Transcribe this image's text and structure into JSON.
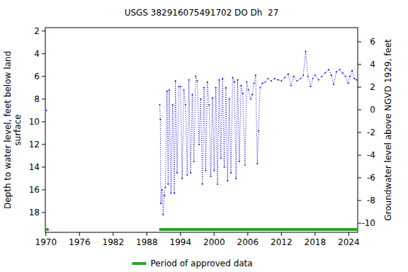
{
  "chart_data": {
    "type": "line",
    "title": "USGS 382916075491702 DO Dh  27",
    "ylabel": [
      "Depth to water level, feet below land",
      "surface"
    ],
    "y2label": "Groundwater level above NGVD 1929, feet",
    "x": [
      1970.1,
      1980.0,
      1990.3,
      1990.4,
      1990.5,
      1990.7,
      1990.9,
      1991.1,
      1991.3,
      1991.6,
      1991.8,
      1992.0,
      1992.3,
      1992.6,
      1992.9,
      1993.1,
      1993.4,
      1993.7,
      1994.0,
      1994.3,
      1994.6,
      1994.9,
      1995.2,
      1995.5,
      1995.8,
      1996.1,
      1996.4,
      1996.7,
      1997.0,
      1997.3,
      1997.6,
      1997.9,
      1998.2,
      1998.5,
      1998.8,
      1999.1,
      1999.4,
      1999.7,
      2000.0,
      2000.3,
      2000.6,
      2000.9,
      2001.2,
      2001.5,
      2001.8,
      2002.1,
      2002.4,
      2002.7,
      2003.0,
      2003.3,
      2003.6,
      2003.9,
      2004.2,
      2004.5,
      2004.8,
      2005.1,
      2005.5,
      2005.8,
      2006.1,
      2006.5,
      2006.8,
      2007.1,
      2007.4,
      2007.7,
      2007.9,
      2008.2,
      2008.6,
      2009.1,
      2009.6,
      2010.2,
      2010.8,
      2011.4,
      2012.0,
      2012.6,
      2013.2,
      2013.7,
      2014.2,
      2014.8,
      2015.4,
      2015.9,
      2016.3,
      2016.7,
      2017.2,
      2017.6,
      2018.0,
      2018.6,
      2019.2,
      2019.8,
      2020.4,
      2020.9,
      2021.3,
      2021.8,
      2022.4,
      2022.9,
      2023.4,
      2023.9,
      2024.2,
      2024.6,
      2025.0,
      2025.4
    ],
    "series": [
      {
        "color": "#0000ff",
        "line_style": "dotted",
        "marker": "point",
        "values": [
          9.0,
          null,
          8.5,
          9.8,
          17.2,
          16.0,
          18.2,
          16.5,
          15.8,
          7.3,
          15.5,
          7.2,
          16.3,
          8.5,
          16.3,
          6.4,
          14.5,
          6.9,
          6.9,
          15.0,
          7.2,
          8.5,
          14.7,
          6.3,
          14.5,
          7.6,
          13.5,
          6.0,
          6.4,
          12.0,
          8.0,
          15.5,
          7.0,
          14.3,
          6.5,
          8.5,
          14.8,
          7.9,
          14.3,
          7.0,
          15.5,
          6.3,
          13.2,
          6.2,
          14.0,
          7.0,
          15.2,
          8.0,
          14.5,
          6.1,
          6.5,
          15.0,
          6.3,
          13.5,
          6.8,
          7.5,
          13.8,
          6.5,
          7.2,
          8.0,
          7.6,
          6.6,
          5.9,
          13.7,
          10.8,
          7.0,
          6.6,
          6.5,
          6.2,
          6.4,
          6.2,
          6.3,
          6.4,
          6.1,
          5.8,
          6.8,
          6.0,
          6.4,
          6.2,
          5.9,
          3.8,
          6.0,
          6.9,
          6.2,
          5.9,
          6.3,
          6.0,
          5.7,
          5.4,
          5.9,
          6.7,
          5.6,
          5.4,
          5.7,
          6.0,
          6.6,
          6.0,
          5.5,
          6.2,
          6.3
        ]
      }
    ],
    "xlim": [
      1969.9,
      2025.6
    ],
    "xticks": [
      1970,
      1976,
      1982,
      1988,
      1994,
      2000,
      2006,
      2012,
      2018,
      2024
    ],
    "ylim": [
      19.75,
      1.7
    ],
    "yticks": [
      2,
      4,
      6,
      8,
      10,
      12,
      14,
      16,
      18
    ],
    "y2lim": [
      -10.81,
      7.25
    ],
    "y2ticks": [
      -10,
      -8,
      -6,
      -4,
      -2,
      0,
      2,
      4,
      6
    ],
    "grid": false,
    "legend": "bottom",
    "approved_label": "Period of approved data",
    "approved_color": "#1faa1f",
    "approved_periods": [
      {
        "start": 1969.9,
        "end": 1970.5
      },
      {
        "start": 1990.2,
        "end": 2025.6
      }
    ]
  }
}
